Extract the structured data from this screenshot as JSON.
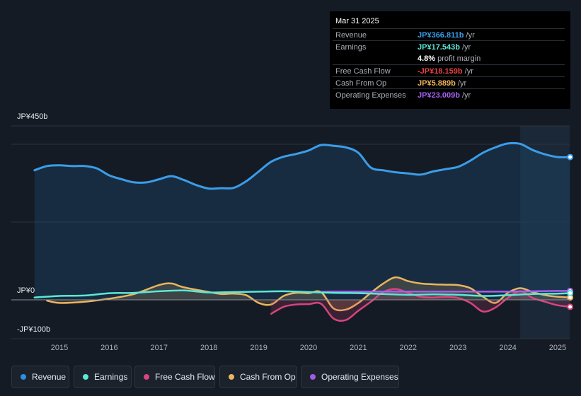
{
  "tooltip": {
    "date": "Mar 31 2025",
    "rows": [
      {
        "label": "Revenue",
        "value": "JP¥366.811b",
        "unit": " /yr",
        "color": "#3b9de8"
      },
      {
        "label": "Earnings",
        "value": "JP¥17.543b",
        "unit": " /yr",
        "color": "#5ce8d6"
      },
      {
        "label": "",
        "value": "4.8%",
        "unit": " profit margin",
        "color": "#ffffff"
      },
      {
        "label": "Free Cash Flow",
        "value": "-JP¥18.159b",
        "unit": " /yr",
        "color": "#e84343"
      },
      {
        "label": "Cash From Op",
        "value": "JP¥5.889b",
        "unit": " /yr",
        "color": "#f0b35a"
      },
      {
        "label": "Operating Expenses",
        "value": "JP¥23.009b",
        "unit": " /yr",
        "color": "#a660f0"
      }
    ]
  },
  "legend": [
    {
      "label": "Revenue",
      "color": "#2d8fe0"
    },
    {
      "label": "Earnings",
      "color": "#5ce8d6"
    },
    {
      "label": "Free Cash Flow",
      "color": "#d6457e"
    },
    {
      "label": "Cash From Op",
      "color": "#eab461"
    },
    {
      "label": "Operating Expenses",
      "color": "#9f5de6"
    }
  ],
  "chart_data": {
    "type": "area",
    "title": "",
    "xlabel": "",
    "ylabel": "",
    "ylim": [
      -100,
      450
    ],
    "y_tick_labels": [
      "JP¥450b",
      "JP¥0",
      "-JP¥100b"
    ],
    "y_ticks": [
      450,
      0,
      -100
    ],
    "x_tick_labels": [
      "2015",
      "2016",
      "2017",
      "2018",
      "2019",
      "2020",
      "2021",
      "2022",
      "2023",
      "2024",
      "2025"
    ],
    "x_ticks": [
      2015,
      2016,
      2017,
      2018,
      2019,
      2020,
      2021,
      2022,
      2023,
      2024,
      2025
    ],
    "xlim": [
      2014.0,
      2025.25
    ],
    "highlight_from": 2024.25,
    "units": "JP¥ billions",
    "series": [
      {
        "name": "Revenue",
        "color": "#3b9de8",
        "fill": true,
        "x": [
          2014.5,
          2014.75,
          2015.0,
          2015.25,
          2015.5,
          2015.75,
          2016.0,
          2016.25,
          2016.5,
          2016.75,
          2017.0,
          2017.25,
          2017.5,
          2017.75,
          2018.0,
          2018.25,
          2018.5,
          2018.75,
          2019.0,
          2019.25,
          2019.5,
          2019.75,
          2020.0,
          2020.25,
          2020.5,
          2020.75,
          2021.0,
          2021.25,
          2021.5,
          2021.75,
          2022.0,
          2022.25,
          2022.5,
          2022.75,
          2023.0,
          2023.25,
          2023.5,
          2023.75,
          2024.0,
          2024.25,
          2024.5,
          2024.75,
          2025.0,
          2025.25
        ],
        "values": [
          333,
          344,
          346,
          344,
          344,
          338,
          320,
          310,
          302,
          302,
          310,
          318,
          308,
          295,
          286,
          287,
          288,
          305,
          330,
          355,
          368,
          375,
          384,
          398,
          396,
          392,
          378,
          340,
          333,
          328,
          325,
          322,
          330,
          336,
          342,
          358,
          378,
          392,
          402,
          401,
          385,
          374,
          367,
          367
        ]
      },
      {
        "name": "Earnings",
        "color": "#5ce8d6",
        "fill": false,
        "x": [
          2014.5,
          2015.0,
          2015.5,
          2016.0,
          2016.5,
          2017.0,
          2017.5,
          2018.0,
          2018.5,
          2019.0,
          2019.5,
          2020.0,
          2020.5,
          2021.0,
          2021.5,
          2022.0,
          2022.5,
          2023.0,
          2023.5,
          2024.0,
          2024.5,
          2025.0,
          2025.25
        ],
        "values": [
          6,
          10,
          11,
          17,
          18,
          22,
          24,
          19,
          20,
          21,
          22,
          20,
          18,
          17,
          15,
          13,
          14,
          13,
          10,
          12,
          15,
          16,
          17.5
        ]
      },
      {
        "name": "Free Cash Flow",
        "color": "#d6457e",
        "fill": true,
        "x": [
          2019.25,
          2019.5,
          2019.75,
          2020.0,
          2020.25,
          2020.5,
          2020.75,
          2021.0,
          2021.25,
          2021.5,
          2021.75,
          2022.0,
          2022.25,
          2022.5,
          2022.75,
          2023.0,
          2023.25,
          2023.5,
          2023.75,
          2024.0,
          2024.25,
          2024.5,
          2024.75,
          2025.0,
          2025.25
        ],
        "values": [
          -36,
          -18,
          -12,
          -11,
          -10,
          -48,
          -52,
          -28,
          -5,
          20,
          28,
          18,
          8,
          6,
          8,
          5,
          -8,
          -30,
          -20,
          5,
          22,
          5,
          -5,
          -14,
          -18
        ]
      },
      {
        "name": "Cash From Op",
        "color": "#eab461",
        "fill": true,
        "x": [
          2014.75,
          2015.0,
          2015.5,
          2016.0,
          2016.5,
          2017.0,
          2017.25,
          2017.5,
          2018.0,
          2018.25,
          2018.5,
          2018.75,
          2019.0,
          2019.25,
          2019.5,
          2019.75,
          2020.0,
          2020.25,
          2020.5,
          2020.75,
          2021.0,
          2021.25,
          2021.5,
          2021.75,
          2022.0,
          2022.25,
          2022.5,
          2022.75,
          2023.0,
          2023.25,
          2023.5,
          2023.75,
          2024.0,
          2024.25,
          2024.5,
          2024.75,
          2025.0,
          2025.25
        ],
        "values": [
          -2,
          -8,
          -5,
          3,
          15,
          38,
          42,
          32,
          20,
          15,
          16,
          12,
          -8,
          -12,
          10,
          18,
          17,
          20,
          -22,
          -25,
          -8,
          18,
          42,
          58,
          48,
          42,
          40,
          39,
          38,
          30,
          8,
          -8,
          18,
          30,
          20,
          12,
          8,
          6
        ]
      },
      {
        "name": "Operating Expenses",
        "color": "#a660f0",
        "fill": false,
        "x": [
          2020.25,
          2020.5,
          2021.0,
          2021.5,
          2022.0,
          2022.5,
          2023.0,
          2023.5,
          2024.0,
          2024.5,
          2025.0,
          2025.25
        ],
        "values": [
          20,
          21,
          21,
          21,
          21,
          21,
          21,
          21,
          21,
          22,
          23,
          23
        ]
      }
    ]
  }
}
